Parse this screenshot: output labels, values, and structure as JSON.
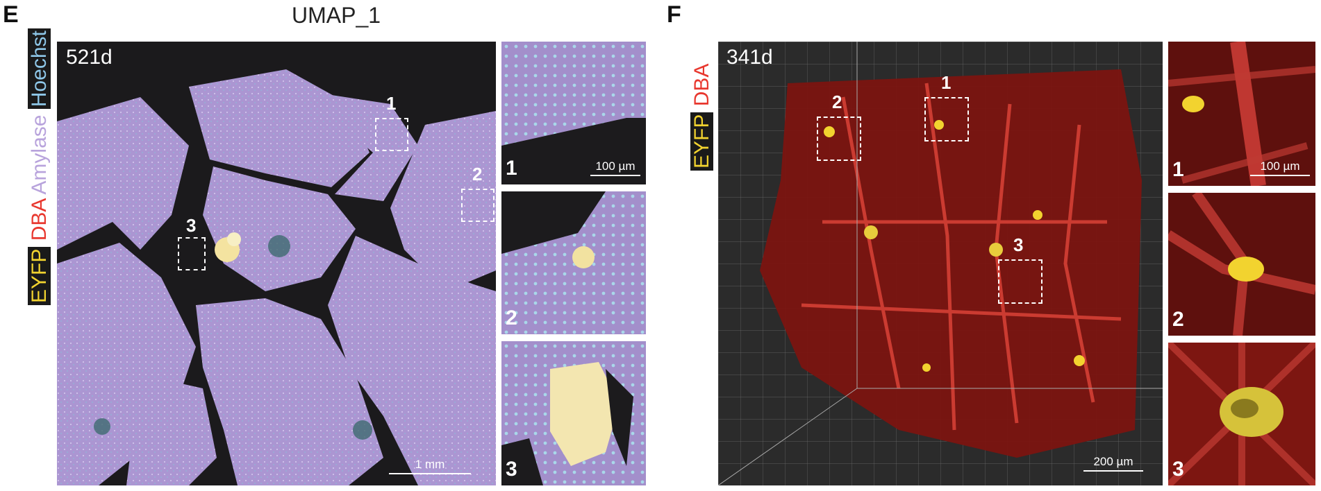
{
  "panel_e": {
    "letter": "E",
    "heading": "UMAP_1",
    "age": "521d",
    "channels": {
      "eyfp": "EYFP",
      "dba": "DBA",
      "amylase": "Amylase",
      "hoechst": "Hoechst"
    },
    "boxes": [
      "1",
      "2",
      "3"
    ],
    "insets": [
      "1",
      "2",
      "3"
    ],
    "scalebar_main": "1 mm",
    "scalebar_inset": "100 µm"
  },
  "panel_f": {
    "letter": "F",
    "age": "341d",
    "channels": {
      "eyfp": "EYFP",
      "dba": "DBA"
    },
    "boxes": [
      "1",
      "2",
      "3"
    ],
    "insets": [
      "1",
      "2",
      "3"
    ],
    "scalebar_main": "200 µm",
    "scalebar_inset": "100 µm"
  },
  "colors": {
    "eyfp": "#f2d32f",
    "dba": "#e8372e",
    "amylase": "#b8a3dc",
    "hoechst": "#8ec7e8",
    "tissue_e": "#a892cf",
    "tissue_f": "#7a1210"
  }
}
